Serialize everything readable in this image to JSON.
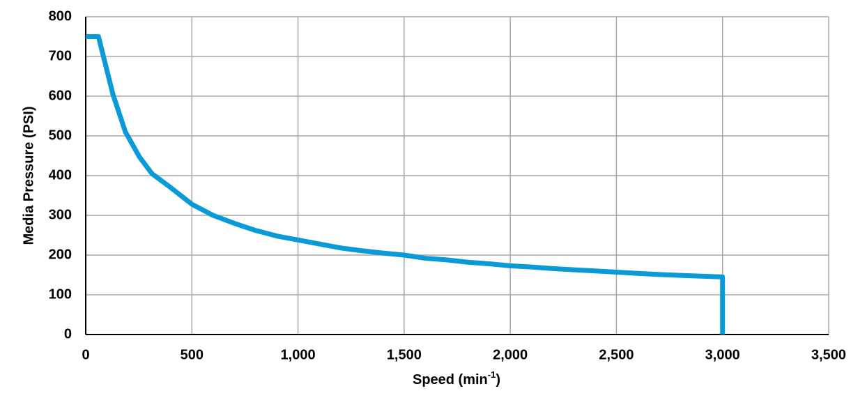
{
  "chart_data": {
    "type": "line",
    "x_label": [
      "Speed (min",
      "-1",
      ")"
    ],
    "y_label": "Media Pressure (PSI)",
    "x": [
      0,
      60,
      128,
      187,
      253,
      312,
      400,
      500,
      600,
      700,
      800,
      900,
      1000,
      1100,
      1200,
      1300,
      1400,
      1500,
      1600,
      1700,
      1800,
      1900,
      2000,
      2100,
      2200,
      2300,
      2400,
      2500,
      2600,
      2700,
      2800,
      2900,
      3000,
      3000
    ],
    "series": [
      {
        "color": "#0a9ad8",
        "values": [
          750,
          750,
          605,
          510,
          447,
          405,
          370,
          328,
          300,
          280,
          262,
          248,
          238,
          228,
          218,
          211,
          205,
          200,
          192,
          188,
          182,
          178,
          173,
          170,
          166,
          163,
          160,
          157,
          154,
          151,
          149,
          147,
          145,
          0
        ]
      }
    ],
    "xlim": [
      0,
      3500
    ],
    "xticks": [
      0,
      500,
      {
        "value": 1000,
        "label": "1,000"
      },
      {
        "value": 1500,
        "label": "1,500"
      },
      {
        "value": 2000,
        "label": "2,000"
      },
      {
        "value": 2500,
        "label": "2,500"
      },
      {
        "value": 3000,
        "label": "3,000"
      },
      {
        "value": 3500,
        "label": "3,500"
      }
    ],
    "ylim": [
      0,
      800
    ],
    "yticks": [
      0,
      100,
      200,
      300,
      400,
      500,
      600,
      700,
      800
    ],
    "grid": true
  }
}
